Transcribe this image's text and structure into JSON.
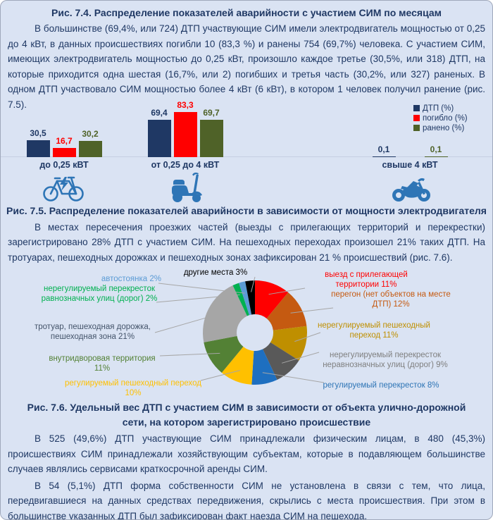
{
  "page": {
    "background": "#dae3f3",
    "text_color": "#1f3864"
  },
  "sections": {
    "fig74_title": "Рис. 7.4. Распределение показателей аварийности с участием СИМ по месяцам",
    "para1": "В большинстве (69,4%, или 724) ДТП участвующие СИМ имели электродвигатель мощностью от 0,25 до 4 кВт, в данных происшествиях погибли 10 (83,3 %) и ранены 754 (69,7%) человека. С участием СИМ, имеющих электродвигатель мощностью до 0,25 кВт, произошло каждое третье (30,5%, или 318) ДТП, на которые приходится одна шестая (16,7%, или 2) погибших и третья часть (30,2%, или 327) раненых. В одном ДТП участвовало СИМ мощностью более 4 кВт (6 кВт), в котором 1 человек получил ранение (рис. 7.5).",
    "fig75_title": "Рис. 7.5. Распределение показателей аварийности в зависимости от мощности электродвигателя",
    "para2": "В местах пересечения проезжих частей (выезды с прилегающих территорий и перекрестки) зарегистрировано 28% ДТП с участием СИМ. На пешеходных переходах произошел 21% таких ДТП. На тротуарах, пешеходных дорожках и пешеходных зонах зафиксирован 21 % происшествий (рис. 7.6).",
    "fig76_title": "Рис. 7.6. Удельный вес ДТП с участием СИМ в зависимости от объекта улично-дорожной сети, на котором зарегистрировано происшествие",
    "para3": "В 525 (49,6%) ДТП участвующие СИМ принадлежали физическим лицам, в 480 (45,3%) происшествиях СИМ принадлежали хозяйствующим субъектам, которые в подавляющем большинстве случаев являлись сервисами краткосрочной аренды СИМ.",
    "para4": "В 54 (5,1%) ДТП форма собственности СИМ не установлена в связи с тем, что лица, передвигавшиеся на данных средствах передвижения, скрылись с места происшествия. При этом в большинстве указанных ДТП был зафиксирован факт наезда СИМ на пешехода."
  },
  "icons": [
    {
      "name": "electric-bicycle-icon",
      "color": "#2e75b6"
    },
    {
      "name": "scooter-icon",
      "color": "#2e75b6"
    },
    {
      "name": "motorcycle-icon",
      "color": "#2e75b6"
    }
  ],
  "chart_data": [
    {
      "type": "bar",
      "title": "",
      "categories": [
        "до 0,25 кВТ",
        "от 0,25 до 4 кВТ",
        "свыше 4 кВТ"
      ],
      "series": [
        {
          "name": "ДТП (%)",
          "color": "#1f3864",
          "values": [
            30.5,
            69.4,
            0.1
          ],
          "labels": [
            "30,5",
            "69,4",
            "0,1"
          ]
        },
        {
          "name": "погибло (%)",
          "color": "#ff0000",
          "values": [
            16.7,
            83.3,
            0.0
          ],
          "labels": [
            "16,7",
            "83,3",
            ""
          ]
        },
        {
          "name": "ранено (%)",
          "color": "#4f6228",
          "values": [
            30.2,
            69.7,
            0.1
          ],
          "labels": [
            "30,2",
            "69,7",
            "0,1"
          ]
        }
      ],
      "ylim": [
        0,
        90
      ],
      "grid": false,
      "legend_position": "top-right"
    },
    {
      "type": "pie",
      "donut": true,
      "start": "12-oclock-clockwise",
      "slices": [
        {
          "label": "выезд с прилегающей территории",
          "value": 11,
          "color": "#ff0000",
          "label_color": "#ff0000",
          "display": "выезд с прилегающей территории 11%"
        },
        {
          "label": "перегон (нет объектов на месте ДТП)",
          "value": 12,
          "color": "#c55a11",
          "label_color": "#c55a11",
          "display": "перегон (нет объектов на месте ДТП) 12%"
        },
        {
          "label": "нерегулируемый пешеходный переход",
          "value": 11,
          "color": "#bf8f00",
          "label_color": "#bf8f00",
          "display": "нерегулируемый пешеходный переход 11%"
        },
        {
          "label": "нерегулируемый перекресток неравнозначных улиц (дорог)",
          "value": 9,
          "color": "#595959",
          "label_color": "#7f7f7f",
          "display": "нерегулируемый перекресток неравнозначных улиц (дорог) 9%"
        },
        {
          "label": "регулируемый перекресток",
          "value": 8,
          "color": "#1e6fc0",
          "label_color": "#2e75b6",
          "display": "регулируемый перекресток 8%"
        },
        {
          "label": "регулируемый пешеходный переход",
          "value": 10,
          "color": "#ffc000",
          "label_color": "#ffc000",
          "display": "регулируемый пешеходный переход 10%"
        },
        {
          "label": "внутридворовая территория",
          "value": 11,
          "color": "#538135",
          "label_color": "#538135",
          "display": "внутридворовая территория 11%"
        },
        {
          "label": "тротуар, пешеходная дорожка, пешеходная зона",
          "value": 21,
          "color": "#a6a6a6",
          "label_color": "#44546a",
          "display": "тротуар, пешеходная дорожка, пешеходная зона 21%"
        },
        {
          "label": "нерегулируемый перекресток равнозначных улиц (дорог)",
          "value": 2,
          "color": "#00b050",
          "label_color": "#00b050",
          "display": "нерегулируемый перекресток равнозначных улиц (дорог) 2%"
        },
        {
          "label": "автостоянка",
          "value": 2,
          "color": "#5b9bd5",
          "label_color": "#5b9bd5",
          "display": "автостоянка 2%"
        },
        {
          "label": "другие места",
          "value": 3,
          "color": "#000000",
          "label_color": "#000000",
          "display": "другие места 3%"
        }
      ]
    }
  ]
}
